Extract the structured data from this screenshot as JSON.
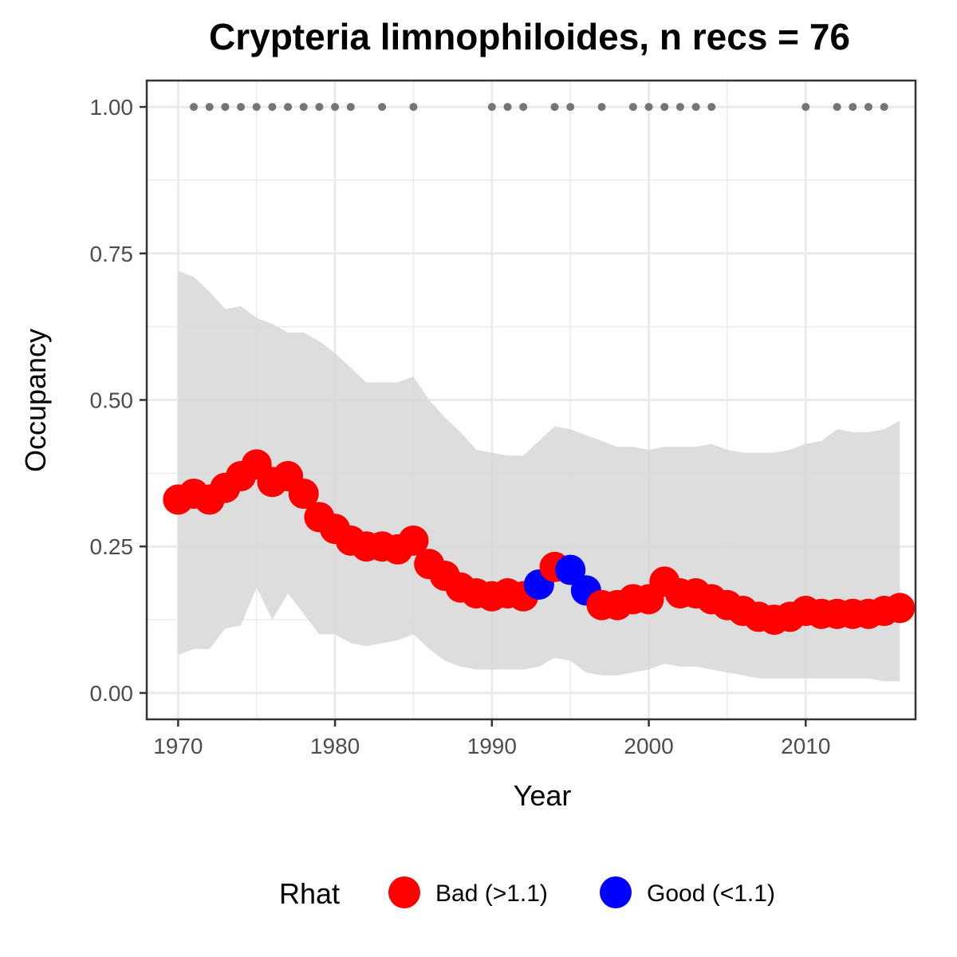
{
  "chart_data": {
    "type": "line",
    "title": "Crypteria limnophiloides, n recs = 76",
    "xlabel": "Year",
    "ylabel": "Occupancy",
    "xlim": [
      1968,
      2017
    ],
    "ylim": [
      -0.045,
      1.045
    ],
    "x_ticks": [
      1970,
      1980,
      1990,
      2000,
      2010
    ],
    "x_tick_labels": [
      "1970",
      "1980",
      "1990",
      "2000",
      "2010"
    ],
    "y_ticks": [
      0,
      0.25,
      0.5,
      0.75,
      1.0
    ],
    "y_tick_labels": [
      "0.00",
      "0.25",
      "0.50",
      "0.75",
      "1.00"
    ],
    "grid": true,
    "years": [
      1970,
      1971,
      1972,
      1973,
      1974,
      1975,
      1976,
      1977,
      1978,
      1979,
      1980,
      1981,
      1982,
      1983,
      1984,
      1985,
      1986,
      1987,
      1988,
      1989,
      1990,
      1991,
      1992,
      1993,
      1994,
      1995,
      1996,
      1997,
      1998,
      1999,
      2000,
      2001,
      2002,
      2003,
      2004,
      2005,
      2006,
      2007,
      2008,
      2009,
      2010,
      2011,
      2012,
      2013,
      2014,
      2015,
      2016
    ],
    "occupancy": [
      0.33,
      0.34,
      0.33,
      0.35,
      0.37,
      0.39,
      0.36,
      0.37,
      0.34,
      0.3,
      0.28,
      0.26,
      0.25,
      0.25,
      0.245,
      0.26,
      0.22,
      0.2,
      0.18,
      0.17,
      0.165,
      0.17,
      0.165,
      0.185,
      0.215,
      0.21,
      0.175,
      0.15,
      0.15,
      0.16,
      0.16,
      0.19,
      0.17,
      0.17,
      0.16,
      0.15,
      0.14,
      0.13,
      0.125,
      0.13,
      0.14,
      0.135,
      0.135,
      0.135,
      0.135,
      0.14,
      0.145
    ],
    "lower": [
      0.065,
      0.075,
      0.075,
      0.11,
      0.115,
      0.18,
      0.125,
      0.17,
      0.135,
      0.1,
      0.1,
      0.085,
      0.08,
      0.085,
      0.09,
      0.1,
      0.075,
      0.055,
      0.045,
      0.04,
      0.04,
      0.04,
      0.04,
      0.045,
      0.06,
      0.055,
      0.035,
      0.03,
      0.03,
      0.035,
      0.04,
      0.05,
      0.045,
      0.045,
      0.04,
      0.035,
      0.03,
      0.025,
      0.025,
      0.025,
      0.025,
      0.025,
      0.025,
      0.025,
      0.025,
      0.02,
      0.02
    ],
    "upper": [
      0.72,
      0.71,
      0.685,
      0.655,
      0.66,
      0.64,
      0.63,
      0.615,
      0.615,
      0.6,
      0.58,
      0.555,
      0.53,
      0.53,
      0.53,
      0.54,
      0.5,
      0.47,
      0.445,
      0.415,
      0.41,
      0.405,
      0.405,
      0.43,
      0.455,
      0.45,
      0.44,
      0.43,
      0.42,
      0.42,
      0.415,
      0.42,
      0.42,
      0.42,
      0.425,
      0.415,
      0.41,
      0.41,
      0.41,
      0.415,
      0.425,
      0.43,
      0.45,
      0.445,
      0.445,
      0.45,
      0.465
    ],
    "rhat_status": [
      "Bad",
      "Bad",
      "Bad",
      "Bad",
      "Bad",
      "Bad",
      "Bad",
      "Bad",
      "Bad",
      "Bad",
      "Bad",
      "Bad",
      "Bad",
      "Bad",
      "Bad",
      "Bad",
      "Bad",
      "Bad",
      "Bad",
      "Bad",
      "Bad",
      "Bad",
      "Bad",
      "Good",
      "Bad",
      "Good",
      "Good",
      "Bad",
      "Bad",
      "Bad",
      "Bad",
      "Bad",
      "Bad",
      "Bad",
      "Bad",
      "Bad",
      "Bad",
      "Bad",
      "Bad",
      "Bad",
      "Bad",
      "Bad",
      "Bad",
      "Bad",
      "Bad",
      "Bad",
      "Bad"
    ],
    "record_years": [
      1971,
      1972,
      1973,
      1974,
      1975,
      1976,
      1977,
      1978,
      1979,
      1980,
      1981,
      1983,
      1985,
      1990,
      1991,
      1992,
      1994,
      1995,
      1997,
      1999,
      2000,
      2001,
      2002,
      2003,
      2004,
      2010,
      2012,
      2013,
      2014,
      2015
    ],
    "record_value": 1.0,
    "legend": {
      "title": "Rhat",
      "position": "bottom",
      "entries": [
        {
          "key": "Bad",
          "label": "Bad (>1.1)",
          "color": "#ff0000"
        },
        {
          "key": "Good",
          "label": "Good (<1.1)",
          "color": "#0000ff"
        }
      ]
    },
    "colors": {
      "ribbon": "#d9d9d9",
      "record_points": "#757575",
      "bad": "#ff0000",
      "good": "#0000ff",
      "grid": "#ebebeb",
      "panel_border": "#333333"
    }
  }
}
